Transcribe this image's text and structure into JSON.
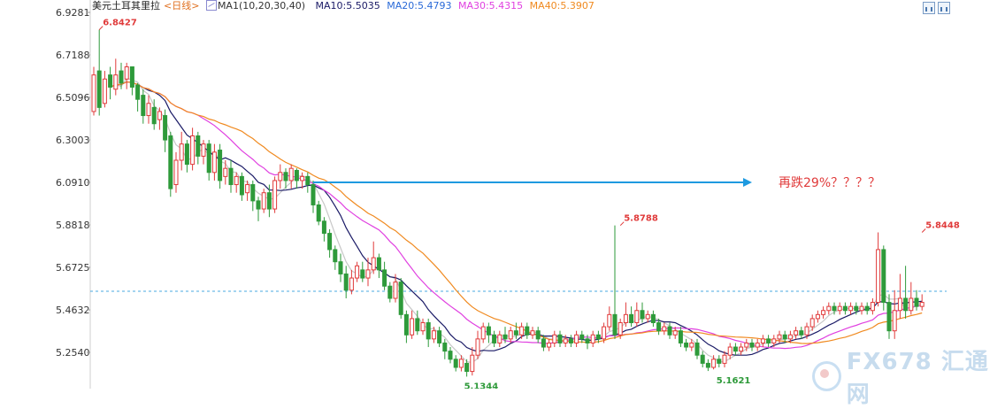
{
  "legend": {
    "title": "美元土耳其里拉",
    "period": "<日线>",
    "ma_label": "MA1(10,20,30,40)",
    "ma10": "MA10:5.5035",
    "ma20": "MA20:5.4793",
    "ma30": "MA30:5.4315",
    "ma40": "MA40:5.3907"
  },
  "icons": [
    "candlestick-icon",
    "chart-type-icon"
  ],
  "watermark": "FX678 汇通网",
  "chart_data": {
    "type": "candlestick",
    "y_ticks": [
      "6.9281",
      "6.7188",
      "6.5096",
      "6.3003",
      "6.0910",
      "5.8818",
      "5.6725",
      "5.4632",
      "5.2540"
    ],
    "ylim": [
      5.1,
      6.95
    ],
    "up_color": "#e03a3a",
    "down_color": "#2e9a3a",
    "reference_line": 5.555,
    "annotations": [
      {
        "text": "6.8427",
        "index": 1,
        "value": 6.8427,
        "kind": "high"
      },
      {
        "text": "5.8788",
        "index": 96,
        "value": 5.8788,
        "kind": "high"
      },
      {
        "text": "5.8448",
        "index": 151,
        "value": 5.8448,
        "kind": "high"
      },
      {
        "text": "5.1344",
        "index": 68,
        "value": 5.1344,
        "kind": "low"
      },
      {
        "text": "5.1621",
        "index": 114,
        "value": 5.1621,
        "kind": "low"
      }
    ],
    "arrow": {
      "from_index": 40,
      "to_index": 120,
      "value": 6.091,
      "label": "再跌29%？？？？",
      "color": "#1e9ae0"
    },
    "candles": [
      [
        6.44,
        6.62,
        6.42,
        6.66
      ],
      [
        6.64,
        6.46,
        6.42,
        6.8427
      ],
      [
        6.48,
        6.6,
        6.46,
        6.64
      ],
      [
        6.62,
        6.56,
        6.5,
        6.66
      ],
      [
        6.55,
        6.62,
        6.52,
        6.7
      ],
      [
        6.64,
        6.58,
        6.55,
        6.68
      ],
      [
        6.6,
        6.66,
        6.55,
        6.68
      ],
      [
        6.66,
        6.56,
        6.52,
        6.66
      ],
      [
        6.57,
        6.5,
        6.44,
        6.58
      ],
      [
        6.52,
        6.42,
        6.38,
        6.55
      ],
      [
        6.42,
        6.48,
        6.38,
        6.52
      ],
      [
        6.46,
        6.38,
        6.35,
        6.5
      ],
      [
        6.4,
        6.44,
        6.35,
        6.46
      ],
      [
        6.42,
        6.3,
        6.24,
        6.45
      ],
      [
        6.32,
        6.06,
        6.02,
        6.34
      ],
      [
        6.08,
        6.2,
        6.04,
        6.24
      ],
      [
        6.2,
        6.28,
        6.15,
        6.34
      ],
      [
        6.28,
        6.18,
        6.14,
        6.3
      ],
      [
        6.18,
        6.32,
        6.15,
        6.36
      ],
      [
        6.32,
        6.22,
        6.18,
        6.34
      ],
      [
        6.22,
        6.28,
        6.18,
        6.3
      ],
      [
        6.28,
        6.14,
        6.1,
        6.3
      ],
      [
        6.14,
        6.24,
        6.1,
        6.28
      ],
      [
        6.25,
        6.1,
        6.06,
        6.28
      ],
      [
        6.12,
        6.16,
        6.08,
        6.2
      ],
      [
        6.16,
        6.08,
        6.04,
        6.2
      ],
      [
        6.08,
        6.12,
        6.04,
        6.14
      ],
      [
        6.12,
        6.03,
        6,
        6.14
      ],
      [
        6.04,
        6.08,
        6,
        6.1
      ],
      [
        6.08,
        6,
        5.95,
        6.1
      ],
      [
        6,
        5.96,
        5.9,
        6.02
      ],
      [
        5.96,
        6.04,
        5.94,
        6.06
      ],
      [
        6.04,
        5.96,
        5.92,
        6.08
      ],
      [
        5.96,
        6.1,
        5.94,
        6.12
      ],
      [
        6.1,
        6.14,
        6.06,
        6.18
      ],
      [
        6.14,
        6.1,
        6.06,
        6.16
      ],
      [
        6.1,
        6.16,
        6.06,
        6.18
      ],
      [
        6.15,
        6.1,
        6.06,
        6.16
      ],
      [
        6.1,
        6.12,
        6.06,
        6.14
      ],
      [
        6.12,
        6.08,
        6.04,
        6.14
      ],
      [
        6.08,
        5.98,
        5.94,
        6.1
      ],
      [
        5.98,
        5.9,
        5.88,
        6
      ],
      [
        5.9,
        5.84,
        5.8,
        5.92
      ],
      [
        5.84,
        5.76,
        5.72,
        5.86
      ],
      [
        5.76,
        5.7,
        5.66,
        5.78
      ],
      [
        5.7,
        5.64,
        5.6,
        5.74
      ],
      [
        5.64,
        5.56,
        5.52,
        5.68
      ],
      [
        5.56,
        5.62,
        5.54,
        5.66
      ],
      [
        5.62,
        5.68,
        5.6,
        5.7
      ],
      [
        5.66,
        5.62,
        5.6,
        5.7
      ],
      [
        5.62,
        5.66,
        5.58,
        5.72
      ],
      [
        5.66,
        5.72,
        5.64,
        5.8
      ],
      [
        5.72,
        5.66,
        5.62,
        5.74
      ],
      [
        5.66,
        5.58,
        5.56,
        5.7
      ],
      [
        5.58,
        5.52,
        5.5,
        5.6
      ],
      [
        5.52,
        5.6,
        5.5,
        5.64
      ],
      [
        5.6,
        5.44,
        5.42,
        5.62
      ],
      [
        5.44,
        5.34,
        5.3,
        5.46
      ],
      [
        5.34,
        5.42,
        5.32,
        5.46
      ],
      [
        5.42,
        5.36,
        5.34,
        5.46
      ],
      [
        5.36,
        5.4,
        5.34,
        5.42
      ],
      [
        5.4,
        5.32,
        5.28,
        5.42
      ],
      [
        5.32,
        5.36,
        5.3,
        5.38
      ],
      [
        5.36,
        5.3,
        5.28,
        5.38
      ],
      [
        5.3,
        5.26,
        5.22,
        5.32
      ],
      [
        5.26,
        5.22,
        5.2,
        5.28
      ],
      [
        5.22,
        5.18,
        5.16,
        5.24
      ],
      [
        5.18,
        5.22,
        5.16,
        5.24
      ],
      [
        5.2,
        5.16,
        5.1344,
        5.22
      ],
      [
        5.16,
        5.24,
        5.14,
        5.28
      ],
      [
        5.24,
        5.32,
        5.22,
        5.36
      ],
      [
        5.32,
        5.38,
        5.3,
        5.4
      ],
      [
        5.38,
        5.34,
        5.3,
        5.4
      ],
      [
        5.34,
        5.3,
        5.28,
        5.36
      ],
      [
        5.3,
        5.34,
        5.28,
        5.36
      ],
      [
        5.34,
        5.32,
        5.3,
        5.38
      ],
      [
        5.32,
        5.36,
        5.3,
        5.38
      ],
      [
        5.36,
        5.34,
        5.32,
        5.4
      ],
      [
        5.34,
        5.38,
        5.32,
        5.4
      ],
      [
        5.38,
        5.34,
        5.32,
        5.4
      ],
      [
        5.34,
        5.36,
        5.32,
        5.38
      ],
      [
        5.36,
        5.32,
        5.3,
        5.38
      ],
      [
        5.32,
        5.28,
        5.26,
        5.34
      ],
      [
        5.28,
        5.3,
        5.26,
        5.32
      ],
      [
        5.3,
        5.34,
        5.28,
        5.36
      ],
      [
        5.34,
        5.3,
        5.28,
        5.36
      ],
      [
        5.3,
        5.32,
        5.28,
        5.34
      ],
      [
        5.32,
        5.3,
        5.28,
        5.34
      ],
      [
        5.3,
        5.34,
        5.28,
        5.36
      ],
      [
        5.34,
        5.32,
        5.3,
        5.36
      ],
      [
        5.32,
        5.3,
        5.27,
        5.34
      ],
      [
        5.3,
        5.34,
        5.28,
        5.36
      ],
      [
        5.34,
        5.32,
        5.3,
        5.36
      ],
      [
        5.32,
        5.38,
        5.3,
        5.4
      ],
      [
        5.38,
        5.44,
        5.36,
        5.48
      ],
      [
        5.44,
        5.34,
        5.32,
        5.8788
      ],
      [
        5.34,
        5.4,
        5.32,
        5.42
      ],
      [
        5.4,
        5.44,
        5.38,
        5.5
      ],
      [
        5.44,
        5.4,
        5.38,
        5.48
      ],
      [
        5.4,
        5.46,
        5.38,
        5.5
      ],
      [
        5.46,
        5.42,
        5.4,
        5.5
      ],
      [
        5.42,
        5.44,
        5.4,
        5.46
      ],
      [
        5.44,
        5.4,
        5.38,
        5.46
      ],
      [
        5.4,
        5.36,
        5.34,
        5.42
      ],
      [
        5.36,
        5.38,
        5.34,
        5.4
      ],
      [
        5.38,
        5.34,
        5.32,
        5.4
      ],
      [
        5.34,
        5.36,
        5.32,
        5.38
      ],
      [
        5.36,
        5.3,
        5.28,
        5.38
      ],
      [
        5.3,
        5.28,
        5.26,
        5.32
      ],
      [
        5.28,
        5.3,
        5.26,
        5.32
      ],
      [
        5.3,
        5.24,
        5.22,
        5.32
      ],
      [
        5.24,
        5.2,
        5.18,
        5.26
      ],
      [
        5.2,
        5.18,
        5.1621,
        5.22
      ],
      [
        5.18,
        5.22,
        5.17,
        5.24
      ],
      [
        5.22,
        5.2,
        5.18,
        5.24
      ],
      [
        5.2,
        5.24,
        5.18,
        5.26
      ],
      [
        5.24,
        5.28,
        5.22,
        5.3
      ],
      [
        5.28,
        5.26,
        5.24,
        5.3
      ],
      [
        5.26,
        5.28,
        5.24,
        5.3
      ],
      [
        5.28,
        5.3,
        5.26,
        5.32
      ],
      [
        5.3,
        5.28,
        5.26,
        5.32
      ],
      [
        5.28,
        5.3,
        5.26,
        5.32
      ],
      [
        5.3,
        5.32,
        5.28,
        5.34
      ],
      [
        5.32,
        5.3,
        5.28,
        5.34
      ],
      [
        5.3,
        5.32,
        5.28,
        5.34
      ],
      [
        5.32,
        5.34,
        5.3,
        5.36
      ],
      [
        5.34,
        5.32,
        5.3,
        5.36
      ],
      [
        5.32,
        5.34,
        5.3,
        5.36
      ],
      [
        5.34,
        5.36,
        5.32,
        5.38
      ],
      [
        5.36,
        5.34,
        5.32,
        5.38
      ],
      [
        5.34,
        5.38,
        5.32,
        5.4
      ],
      [
        5.38,
        5.42,
        5.36,
        5.44
      ],
      [
        5.42,
        5.44,
        5.4,
        5.46
      ],
      [
        5.44,
        5.46,
        5.42,
        5.48
      ],
      [
        5.46,
        5.48,
        5.44,
        5.5
      ],
      [
        5.48,
        5.46,
        5.44,
        5.5
      ],
      [
        5.46,
        5.48,
        5.44,
        5.5
      ],
      [
        5.48,
        5.46,
        5.44,
        5.5
      ],
      [
        5.46,
        5.48,
        5.44,
        5.5
      ],
      [
        5.48,
        5.46,
        5.44,
        5.5
      ],
      [
        5.46,
        5.48,
        5.44,
        5.5
      ],
      [
        5.48,
        5.46,
        5.44,
        5.5
      ],
      [
        5.46,
        5.5,
        5.44,
        5.52
      ],
      [
        5.5,
        5.76,
        5.48,
        5.8448
      ],
      [
        5.76,
        5.5,
        5.46,
        5.78
      ],
      [
        5.5,
        5.36,
        5.32,
        5.54
      ],
      [
        5.36,
        5.46,
        5.32,
        5.56
      ],
      [
        5.46,
        5.52,
        5.42,
        5.64
      ],
      [
        5.52,
        5.46,
        5.42,
        5.68
      ],
      [
        5.46,
        5.52,
        5.44,
        5.6
      ],
      [
        5.52,
        5.48,
        5.46,
        5.56
      ],
      [
        5.48,
        5.5,
        5.46,
        5.54
      ]
    ]
  }
}
